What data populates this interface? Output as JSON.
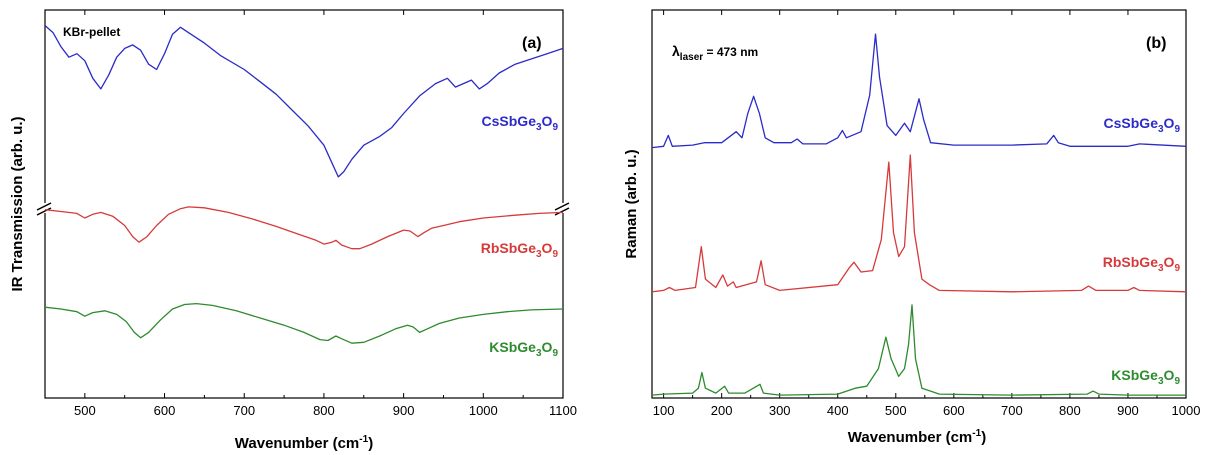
{
  "chart_data": [
    {
      "type": "line",
      "panel_label": "(a)",
      "annotation": "KBr-pellet",
      "xlabel": "Wavenumber (cm-1)",
      "xlabel_main": "Wavenumber (cm",
      "xlabel_sup": "-1",
      "xlabel_end": ")",
      "ylabel": "IR Transmission (arb. u.)",
      "xlim": [
        450,
        1100
      ],
      "xticks": [
        500,
        600,
        700,
        800,
        900,
        1000,
        1100
      ],
      "y_axis_break": true,
      "series": [
        {
          "name": "CsSbGe3O9",
          "label_main": "CsSbGe",
          "sub1": "3",
          "mid": "O",
          "sub2": "9",
          "color": "#2b2bc8",
          "points": [
            [
              450,
              0.98
            ],
            [
              460,
              0.94
            ],
            [
              470,
              0.86
            ],
            [
              480,
              0.8
            ],
            [
              490,
              0.82
            ],
            [
              500,
              0.78
            ],
            [
              510,
              0.68
            ],
            [
              520,
              0.62
            ],
            [
              530,
              0.7
            ],
            [
              540,
              0.8
            ],
            [
              550,
              0.85
            ],
            [
              560,
              0.87
            ],
            [
              570,
              0.84
            ],
            [
              580,
              0.76
            ],
            [
              590,
              0.73
            ],
            [
              600,
              0.82
            ],
            [
              610,
              0.93
            ],
            [
              620,
              0.97
            ],
            [
              630,
              0.94
            ],
            [
              650,
              0.88
            ],
            [
              670,
              0.81
            ],
            [
              700,
              0.73
            ],
            [
              720,
              0.66
            ],
            [
              740,
              0.59
            ],
            [
              760,
              0.5
            ],
            [
              780,
              0.41
            ],
            [
              800,
              0.3
            ],
            [
              810,
              0.2
            ],
            [
              818,
              0.12
            ],
            [
              825,
              0.15
            ],
            [
              835,
              0.22
            ],
            [
              850,
              0.3
            ],
            [
              870,
              0.35
            ],
            [
              885,
              0.4
            ],
            [
              900,
              0.48
            ],
            [
              920,
              0.58
            ],
            [
              940,
              0.65
            ],
            [
              955,
              0.68
            ],
            [
              965,
              0.63
            ],
            [
              975,
              0.65
            ],
            [
              985,
              0.67
            ],
            [
              995,
              0.62
            ],
            [
              1005,
              0.65
            ],
            [
              1020,
              0.71
            ],
            [
              1040,
              0.76
            ],
            [
              1060,
              0.79
            ],
            [
              1080,
              0.82
            ],
            [
              1100,
              0.85
            ]
          ]
        },
        {
          "name": "RbSbGe3O9",
          "label_main": "RbSbGe",
          "sub1": "3",
          "mid": "O",
          "sub2": "9",
          "color": "#d63a3a",
          "points": [
            [
              450,
              0.95
            ],
            [
              470,
              0.93
            ],
            [
              490,
              0.91
            ],
            [
              500,
              0.86
            ],
            [
              510,
              0.9
            ],
            [
              520,
              0.92
            ],
            [
              535,
              0.88
            ],
            [
              550,
              0.78
            ],
            [
              560,
              0.66
            ],
            [
              568,
              0.6
            ],
            [
              578,
              0.66
            ],
            [
              590,
              0.78
            ],
            [
              605,
              0.9
            ],
            [
              620,
              0.96
            ],
            [
              630,
              0.98
            ],
            [
              650,
              0.97
            ],
            [
              680,
              0.92
            ],
            [
              710,
              0.85
            ],
            [
              740,
              0.77
            ],
            [
              770,
              0.68
            ],
            [
              790,
              0.62
            ],
            [
              800,
              0.58
            ],
            [
              810,
              0.6
            ],
            [
              815,
              0.62
            ],
            [
              822,
              0.57
            ],
            [
              835,
              0.53
            ],
            [
              845,
              0.53
            ],
            [
              860,
              0.58
            ],
            [
              880,
              0.66
            ],
            [
              900,
              0.73
            ],
            [
              908,
              0.72
            ],
            [
              918,
              0.66
            ],
            [
              925,
              0.7
            ],
            [
              935,
              0.75
            ],
            [
              950,
              0.78
            ],
            [
              970,
              0.82
            ],
            [
              1000,
              0.86
            ],
            [
              1040,
              0.89
            ],
            [
              1070,
              0.91
            ],
            [
              1100,
              0.92
            ]
          ]
        },
        {
          "name": "KSbGe3O9",
          "label_main": "KSbGe",
          "sub1": "3",
          "mid": "O",
          "sub2": "9",
          "color": "#2e8b2e",
          "points": [
            [
              450,
              0.92
            ],
            [
              470,
              0.9
            ],
            [
              490,
              0.87
            ],
            [
              500,
              0.82
            ],
            [
              510,
              0.86
            ],
            [
              525,
              0.88
            ],
            [
              540,
              0.84
            ],
            [
              552,
              0.76
            ],
            [
              562,
              0.64
            ],
            [
              570,
              0.58
            ],
            [
              580,
              0.64
            ],
            [
              595,
              0.78
            ],
            [
              610,
              0.9
            ],
            [
              625,
              0.95
            ],
            [
              640,
              0.96
            ],
            [
              660,
              0.94
            ],
            [
              690,
              0.88
            ],
            [
              720,
              0.8
            ],
            [
              750,
              0.72
            ],
            [
              775,
              0.64
            ],
            [
              795,
              0.56
            ],
            [
              805,
              0.55
            ],
            [
              815,
              0.6
            ],
            [
              822,
              0.57
            ],
            [
              835,
              0.52
            ],
            [
              850,
              0.53
            ],
            [
              870,
              0.6
            ],
            [
              890,
              0.68
            ],
            [
              905,
              0.72
            ],
            [
              912,
              0.7
            ],
            [
              920,
              0.64
            ],
            [
              930,
              0.68
            ],
            [
              945,
              0.74
            ],
            [
              970,
              0.8
            ],
            [
              1000,
              0.84
            ],
            [
              1030,
              0.87
            ],
            [
              1060,
              0.89
            ],
            [
              1100,
              0.9
            ]
          ]
        }
      ]
    },
    {
      "type": "line",
      "panel_label": "(b)",
      "annotation_prefix": "λ",
      "annotation_sub": "laser",
      "annotation_rest": " = 473 nm",
      "xlabel": "Wavenumber (cm-1)",
      "xlabel_main": "Wavenumber (cm",
      "xlabel_sup": "-1",
      "xlabel_end": ")",
      "ylabel": "Raman (arb. u.)",
      "xlim": [
        80,
        1000
      ],
      "xticks": [
        100,
        200,
        300,
        400,
        500,
        600,
        700,
        800,
        900,
        1000
      ],
      "series": [
        {
          "name": "CsSbGe3O9",
          "label_main": "CsSbGe",
          "sub1": "3",
          "mid": "O",
          "sub2": "9",
          "color": "#2b2bc8",
          "points": [
            [
              80,
              0.02
            ],
            [
              100,
              0.03
            ],
            [
              108,
              0.12
            ],
            [
              115,
              0.03
            ],
            [
              150,
              0.04
            ],
            [
              170,
              0.06
            ],
            [
              200,
              0.06
            ],
            [
              225,
              0.15
            ],
            [
              235,
              0.1
            ],
            [
              245,
              0.3
            ],
            [
              255,
              0.44
            ],
            [
              265,
              0.3
            ],
            [
              275,
              0.1
            ],
            [
              290,
              0.06
            ],
            [
              320,
              0.06
            ],
            [
              330,
              0.09
            ],
            [
              340,
              0.05
            ],
            [
              380,
              0.05
            ],
            [
              400,
              0.1
            ],
            [
              408,
              0.16
            ],
            [
              415,
              0.1
            ],
            [
              440,
              0.15
            ],
            [
              455,
              0.45
            ],
            [
              465,
              0.95
            ],
            [
              472,
              0.6
            ],
            [
              485,
              0.2
            ],
            [
              500,
              0.12
            ],
            [
              515,
              0.22
            ],
            [
              525,
              0.15
            ],
            [
              540,
              0.42
            ],
            [
              548,
              0.25
            ],
            [
              560,
              0.06
            ],
            [
              600,
              0.04
            ],
            [
              700,
              0.04
            ],
            [
              760,
              0.05
            ],
            [
              772,
              0.12
            ],
            [
              780,
              0.06
            ],
            [
              800,
              0.03
            ],
            [
              900,
              0.03
            ],
            [
              920,
              0.05
            ],
            [
              1000,
              0.03
            ]
          ]
        },
        {
          "name": "RbSbGe3O9",
          "label_main": "RbSbGe",
          "sub1": "3",
          "mid": "O",
          "sub2": "9",
          "color": "#d63a3a",
          "points": [
            [
              80,
              0.03
            ],
            [
              100,
              0.04
            ],
            [
              110,
              0.06
            ],
            [
              120,
              0.04
            ],
            [
              155,
              0.06
            ],
            [
              165,
              0.35
            ],
            [
              172,
              0.12
            ],
            [
              190,
              0.06
            ],
            [
              202,
              0.15
            ],
            [
              210,
              0.07
            ],
            [
              220,
              0.1
            ],
            [
              225,
              0.06
            ],
            [
              260,
              0.1
            ],
            [
              268,
              0.25
            ],
            [
              275,
              0.08
            ],
            [
              300,
              0.04
            ],
            [
              400,
              0.08
            ],
            [
              420,
              0.2
            ],
            [
              428,
              0.24
            ],
            [
              440,
              0.17
            ],
            [
              460,
              0.18
            ],
            [
              475,
              0.4
            ],
            [
              488,
              0.95
            ],
            [
              496,
              0.45
            ],
            [
              505,
              0.28
            ],
            [
              515,
              0.35
            ],
            [
              525,
              1.0
            ],
            [
              532,
              0.45
            ],
            [
              545,
              0.12
            ],
            [
              558,
              0.08
            ],
            [
              575,
              0.04
            ],
            [
              700,
              0.03
            ],
            [
              820,
              0.04
            ],
            [
              832,
              0.07
            ],
            [
              845,
              0.04
            ],
            [
              900,
              0.04
            ],
            [
              910,
              0.06
            ],
            [
              920,
              0.04
            ],
            [
              1000,
              0.03
            ]
          ]
        },
        {
          "name": "KSbGe3O9",
          "label_main": "KSbGe",
          "sub1": "3",
          "mid": "O",
          "sub2": "9",
          "color": "#2e8b2e",
          "points": [
            [
              80,
              0.03
            ],
            [
              100,
              0.04
            ],
            [
              150,
              0.05
            ],
            [
              160,
              0.1
            ],
            [
              166,
              0.26
            ],
            [
              172,
              0.1
            ],
            [
              190,
              0.05
            ],
            [
              205,
              0.12
            ],
            [
              212,
              0.05
            ],
            [
              240,
              0.05
            ],
            [
              266,
              0.14
            ],
            [
              272,
              0.05
            ],
            [
              300,
              0.03
            ],
            [
              400,
              0.04
            ],
            [
              430,
              0.1
            ],
            [
              450,
              0.12
            ],
            [
              470,
              0.3
            ],
            [
              483,
              0.62
            ],
            [
              492,
              0.4
            ],
            [
              505,
              0.22
            ],
            [
              515,
              0.3
            ],
            [
              522,
              0.55
            ],
            [
              528,
              0.95
            ],
            [
              534,
              0.4
            ],
            [
              545,
              0.1
            ],
            [
              560,
              0.07
            ],
            [
              575,
              0.04
            ],
            [
              700,
              0.03
            ],
            [
              830,
              0.04
            ],
            [
              840,
              0.07
            ],
            [
              850,
              0.04
            ],
            [
              900,
              0.03
            ],
            [
              1000,
              0.03
            ]
          ]
        }
      ]
    }
  ]
}
